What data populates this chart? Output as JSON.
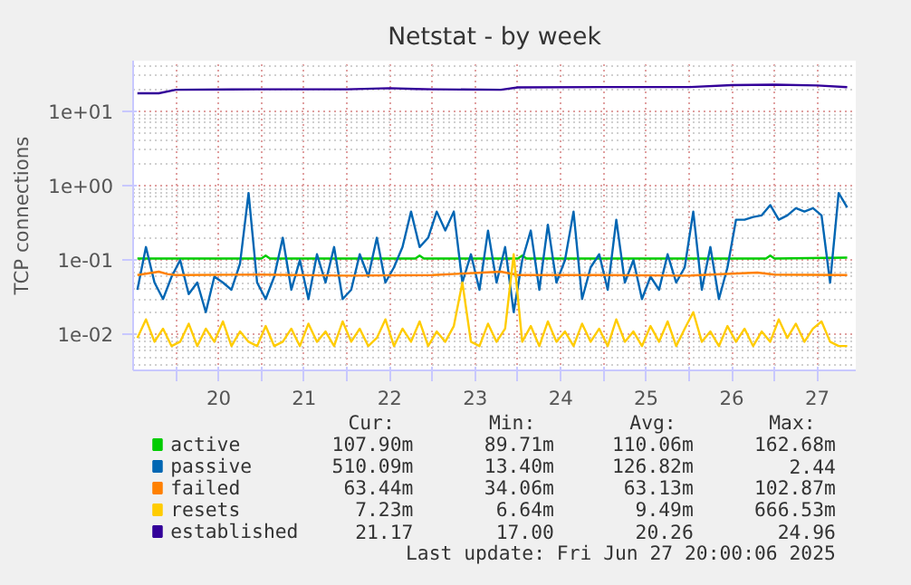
{
  "chart_data": {
    "type": "line",
    "title": "Netstat - by week",
    "ylabel": "TCP connections",
    "log": "y",
    "grid": true,
    "legend": "bottom",
    "marker": "none",
    "line_style": "solid",
    "xlim": [
      19.0,
      27.45
    ],
    "ylim": [
      0.0033,
      48
    ],
    "xticks": [
      {
        "value": 19.5,
        "label": null
      },
      20,
      {
        "value": 20.5,
        "label": null
      },
      21,
      {
        "value": 21.5,
        "label": null
      },
      22,
      {
        "value": 22.5,
        "label": null
      },
      23,
      {
        "value": 23.5,
        "label": null
      },
      24,
      {
        "value": 24.5,
        "label": null
      },
      25,
      {
        "value": 25.5,
        "label": null
      },
      26,
      {
        "value": 26.5,
        "label": null
      },
      27
    ],
    "yticks": [
      {
        "value": 0.01,
        "label": "1e-02"
      },
      {
        "value": 0.1,
        "label": "1e-01"
      },
      {
        "value": 1,
        "label": "1e+00"
      },
      {
        "value": 10,
        "label": "1e+01"
      }
    ],
    "x": [
      19.05,
      19.15,
      19.25,
      19.35,
      19.45,
      19.55,
      19.65,
      19.75,
      19.85,
      19.95,
      20.05,
      20.15,
      20.25,
      20.35,
      20.45,
      20.55,
      20.65,
      20.75,
      20.85,
      20.95,
      21.05,
      21.15,
      21.25,
      21.35,
      21.45,
      21.55,
      21.65,
      21.75,
      21.85,
      21.95,
      22.05,
      22.15,
      22.25,
      22.35,
      22.45,
      22.55,
      22.65,
      22.75,
      22.85,
      22.95,
      23.05,
      23.15,
      23.25,
      23.35,
      23.45,
      23.55,
      23.65,
      23.75,
      23.85,
      23.95,
      24.05,
      24.15,
      24.25,
      24.35,
      24.45,
      24.55,
      24.65,
      24.75,
      24.85,
      24.95,
      25.05,
      25.15,
      25.25,
      25.35,
      25.45,
      25.55,
      25.65,
      25.75,
      25.85,
      25.95,
      26.05,
      26.15,
      26.25,
      26.35,
      26.45,
      26.55,
      26.65,
      26.75,
      26.85,
      26.95,
      27.05,
      27.15,
      27.25,
      27.35
    ],
    "series": [
      {
        "name": "active",
        "color": "#00cc00",
        "x": [
          19.05,
          20.5,
          20.55,
          20.6,
          22.3,
          22.35,
          22.4,
          23.5,
          23.55,
          23.6,
          26.4,
          26.45,
          26.5,
          27.35
        ],
        "values": [
          0.105,
          0.105,
          0.115,
          0.105,
          0.105,
          0.115,
          0.105,
          0.105,
          0.115,
          0.105,
          0.105,
          0.115,
          0.105,
          0.108
        ]
      },
      {
        "name": "passive",
        "color": "#0066b3",
        "values": [
          0.04,
          0.15,
          0.05,
          0.03,
          0.06,
          0.1,
          0.035,
          0.05,
          0.02,
          0.06,
          0.05,
          0.04,
          0.09,
          0.8,
          0.05,
          0.03,
          0.06,
          0.2,
          0.04,
          0.1,
          0.03,
          0.12,
          0.05,
          0.15,
          0.03,
          0.04,
          0.12,
          0.06,
          0.2,
          0.05,
          0.08,
          0.15,
          0.45,
          0.15,
          0.2,
          0.45,
          0.25,
          0.45,
          0.05,
          0.12,
          0.04,
          0.25,
          0.05,
          0.15,
          0.02,
          0.1,
          0.25,
          0.04,
          0.3,
          0.05,
          0.1,
          0.45,
          0.03,
          0.08,
          0.12,
          0.04,
          0.35,
          0.05,
          0.1,
          0.03,
          0.06,
          0.04,
          0.12,
          0.05,
          0.08,
          0.45,
          0.04,
          0.15,
          0.03,
          0.08,
          0.35,
          0.35,
          0.38,
          0.4,
          0.55,
          0.35,
          0.4,
          0.5,
          0.45,
          0.5,
          0.4,
          0.05,
          0.8,
          0.51
        ]
      },
      {
        "name": "failed",
        "color": "#ff8000",
        "x": [
          19.05,
          19.3,
          19.4,
          19.5,
          20.5,
          21.5,
          22.5,
          23.3,
          23.5,
          24.5,
          25.5,
          26.3,
          26.5,
          27.35
        ],
        "values": [
          0.063,
          0.07,
          0.065,
          0.063,
          0.064,
          0.062,
          0.063,
          0.07,
          0.063,
          0.063,
          0.062,
          0.068,
          0.064,
          0.063
        ]
      },
      {
        "name": "resets",
        "color": "#ffcc00",
        "values": [
          0.009,
          0.016,
          0.008,
          0.012,
          0.007,
          0.008,
          0.014,
          0.007,
          0.012,
          0.008,
          0.015,
          0.007,
          0.011,
          0.008,
          0.007,
          0.013,
          0.007,
          0.008,
          0.012,
          0.007,
          0.014,
          0.008,
          0.011,
          0.007,
          0.015,
          0.008,
          0.012,
          0.007,
          0.009,
          0.016,
          0.007,
          0.012,
          0.008,
          0.015,
          0.007,
          0.011,
          0.008,
          0.013,
          0.05,
          0.008,
          0.007,
          0.014,
          0.008,
          0.012,
          0.12,
          0.008,
          0.013,
          0.007,
          0.015,
          0.008,
          0.011,
          0.007,
          0.014,
          0.008,
          0.012,
          0.007,
          0.016,
          0.008,
          0.011,
          0.007,
          0.013,
          0.008,
          0.015,
          0.007,
          0.012,
          0.02,
          0.008,
          0.011,
          0.007,
          0.013,
          0.008,
          0.012,
          0.007,
          0.011,
          0.008,
          0.016,
          0.009,
          0.014,
          0.008,
          0.012,
          0.015,
          0.008,
          0.007,
          0.007
        ]
      },
      {
        "name": "established",
        "color": "#330099",
        "x": [
          19.05,
          19.3,
          19.5,
          20.5,
          21.5,
          22.0,
          22.3,
          22.5,
          23.3,
          23.5,
          24.5,
          25.5,
          26.0,
          26.5,
          27.0,
          27.35
        ],
        "values": [
          17.5,
          17.5,
          19.5,
          19.8,
          19.8,
          20.5,
          20.0,
          19.8,
          19.5,
          21.0,
          21.2,
          21.2,
          22.5,
          22.8,
          22.3,
          21.17
        ]
      }
    ],
    "annotations": [
      "Cur:",
      "Min:",
      "Avg:",
      "Max:",
      "107.90m",
      "89.71m",
      "110.06m",
      "162.68m",
      "510.09m",
      "13.40m",
      "126.82m",
      "2.44",
      "63.44m",
      "34.06m",
      "63.13m",
      "102.87m",
      "7.23m",
      "6.64m",
      "9.49m",
      "666.53m",
      "21.17",
      "17.00",
      "20.26",
      "24.96",
      "Last update: Fri Jun 27 20:00:06 2025"
    ]
  }
}
